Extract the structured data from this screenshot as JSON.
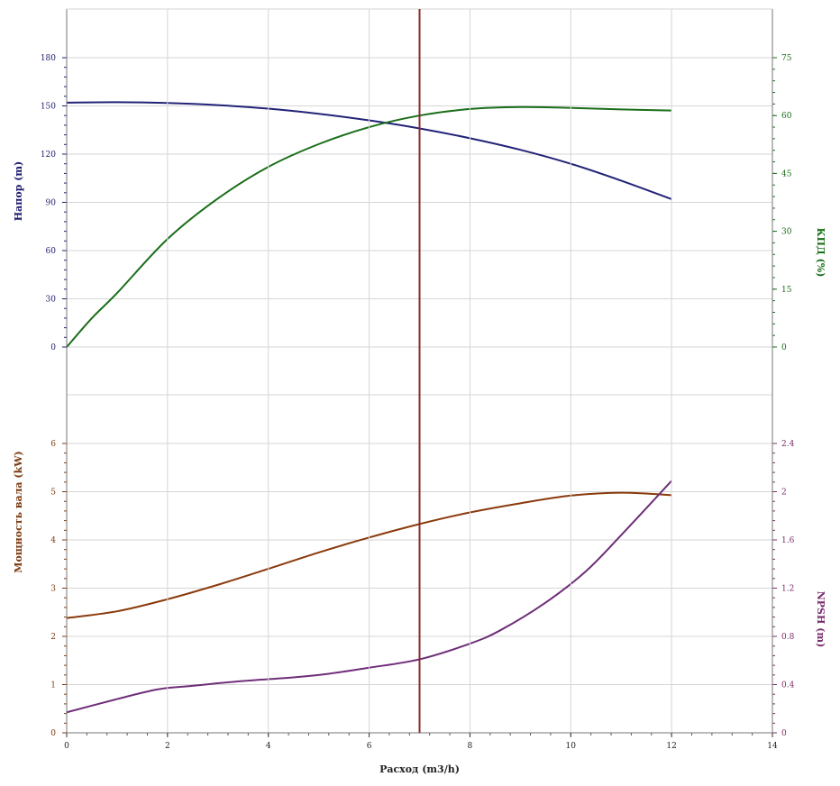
{
  "chart_data": [
    {
      "type": "line",
      "panel": "top",
      "xlabel": "",
      "xlim": [
        0,
        14
      ],
      "x_ticks": [
        0,
        2,
        4,
        6,
        8,
        10,
        12,
        14
      ],
      "left_axis": {
        "label": "Напор (m)",
        "color": "#1d1d6e",
        "ylim": [
          0,
          180
        ],
        "ticks": [
          0,
          30,
          60,
          90,
          120,
          150,
          180
        ]
      },
      "right_axis": {
        "label": "КПД (%)",
        "color": "#1a6e1a",
        "ylim": [
          0,
          75
        ],
        "ticks": [
          0,
          15,
          30,
          45,
          60,
          75
        ]
      },
      "series": [
        {
          "name": "Напор (m)",
          "axis": "left",
          "color": "#232378",
          "x": [
            0,
            1,
            2,
            3,
            4,
            5,
            6,
            7,
            8,
            9,
            10,
            11,
            12
          ],
          "y": [
            152,
            152.3,
            151.8,
            150.5,
            148.3,
            145.1,
            141,
            136,
            129.9,
            122.7,
            114,
            103.5,
            92
          ]
        },
        {
          "name": "КПД (%)",
          "axis": "right",
          "color": "#1a6e1a",
          "x": [
            0,
            0.5,
            1,
            2,
            3,
            4,
            5,
            6,
            7,
            8,
            9,
            10,
            11,
            12
          ],
          "y": [
            0,
            7.5,
            14,
            28,
            38.5,
            46.7,
            52.6,
            57,
            60,
            61.7,
            62.2,
            62,
            61.6,
            61.3
          ]
        }
      ],
      "marker_line": {
        "x": 7,
        "color": "#8a2b2b"
      }
    },
    {
      "type": "line",
      "panel": "bottom",
      "xlabel": "Расход (m3/h)",
      "xlim": [
        0,
        14
      ],
      "x_ticks": [
        0,
        2,
        4,
        6,
        8,
        10,
        12,
        14
      ],
      "left_axis": {
        "label": "Мощность вала (kW)",
        "color": "#7a3a10",
        "ylim": [
          0,
          6
        ],
        "ticks": [
          0,
          1,
          2,
          3,
          4,
          5,
          6
        ]
      },
      "right_axis": {
        "label": "NPSH (m)",
        "color": "#7a2d6e",
        "ylim": [
          0,
          2.4
        ],
        "ticks": [
          0,
          0.4,
          0.8,
          1.2,
          1.6,
          2,
          2.4
        ]
      },
      "series": [
        {
          "name": "Мощность вала (kW)",
          "axis": "left",
          "color": "#8a3a0c",
          "x": [
            0,
            1,
            2,
            3,
            4,
            5,
            6,
            7,
            8,
            9,
            10,
            11,
            12
          ],
          "y": [
            2.38,
            2.52,
            2.77,
            3.07,
            3.4,
            3.74,
            4.05,
            4.33,
            4.57,
            4.76,
            4.92,
            4.98,
            4.93
          ]
        },
        {
          "name": "NPSH (m)",
          "axis": "right",
          "color": "#6e2e78",
          "x": [
            0,
            1,
            1.8,
            2.5,
            3.5,
            4.5,
            5.2,
            6,
            7,
            8,
            8.6,
            9.5,
            10.3,
            11,
            12
          ],
          "y": [
            0.17,
            0.28,
            0.36,
            0.39,
            0.43,
            0.46,
            0.49,
            0.54,
            0.61,
            0.74,
            0.85,
            1.08,
            1.34,
            1.64,
            2.09
          ]
        }
      ],
      "marker_line": {
        "x": 7,
        "color": "#8a2b2b"
      }
    }
  ]
}
